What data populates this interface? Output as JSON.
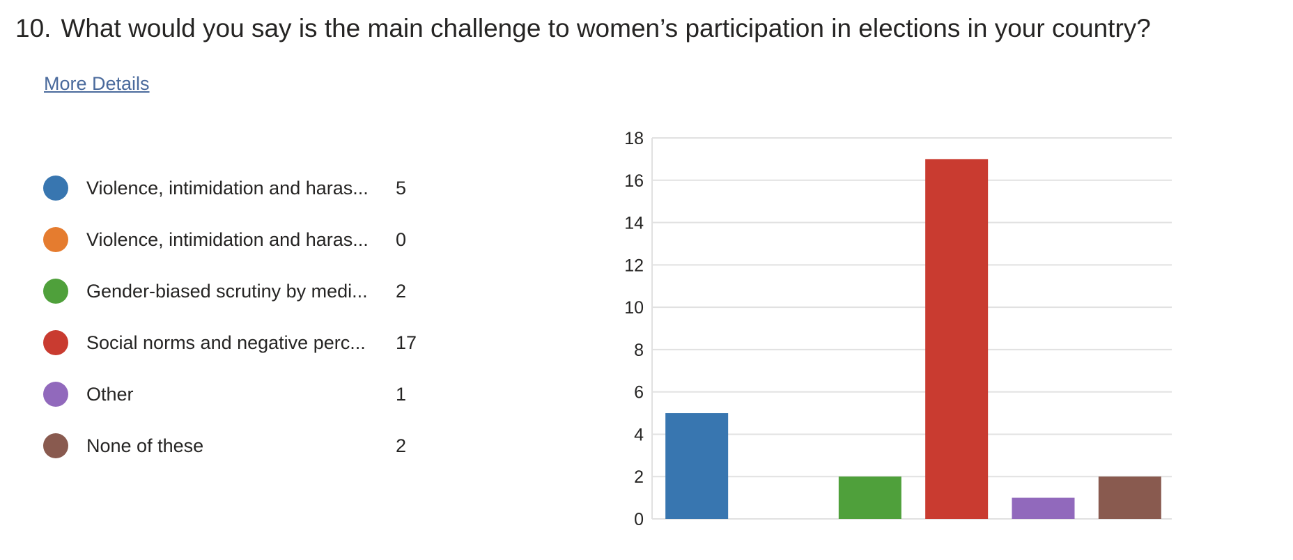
{
  "question": {
    "number": "10.",
    "text": "What would you say is the main challenge to women’s participation in elections in your country?"
  },
  "more_details_label": "More Details",
  "legend": [
    {
      "label": "Violence, intimidation and haras...",
      "count": "5",
      "color": "#3876b0"
    },
    {
      "label": "Violence, intimidation and haras...",
      "count": "0",
      "color": "#e57c2f"
    },
    {
      "label": "Gender-biased scrutiny by medi...",
      "count": "2",
      "color": "#4fa03b"
    },
    {
      "label": "Social norms and negative perc...",
      "count": "17",
      "color": "#c93b30"
    },
    {
      "label": "Other",
      "count": "1",
      "color": "#9169bc"
    },
    {
      "label": "None of these",
      "count": "2",
      "color": "#895a4f"
    }
  ],
  "chart_data": {
    "type": "bar",
    "categories": [
      "Violence, intimidation and haras...",
      "Violence, intimidation and haras...",
      "Gender-biased scrutiny by medi...",
      "Social norms and negative perc...",
      "Other",
      "None of these"
    ],
    "values": [
      5,
      0,
      2,
      17,
      1,
      2
    ],
    "colors": [
      "#3876b0",
      "#e57c2f",
      "#4fa03b",
      "#c93b30",
      "#9169bc",
      "#895a4f"
    ],
    "title": "",
    "xlabel": "",
    "ylabel": "",
    "ylim": [
      0,
      18
    ],
    "yticks": [
      0,
      2,
      4,
      6,
      8,
      10,
      12,
      14,
      16,
      18
    ],
    "grid": true,
    "legend_position": "left"
  }
}
